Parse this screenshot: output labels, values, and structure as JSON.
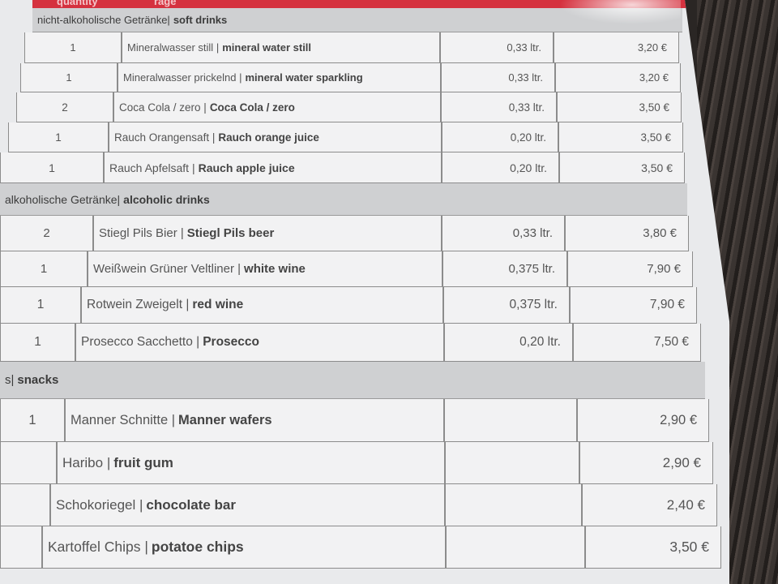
{
  "header": {
    "quantity_label": "quantity",
    "partial_label": "rage"
  },
  "sections": [
    {
      "title_de": "nicht-alkoholische Getränke",
      "title_en": "soft drinks",
      "items": [
        {
          "qty": "1",
          "name_de": "Mineralwasser still",
          "name_en": "mineral water still",
          "volume": "0,33 ltr.",
          "price": "3,20 €"
        },
        {
          "qty": "1",
          "name_de": "Mineralwasser prickelnd",
          "name_en": "mineral water sparkling",
          "volume": "0,33 ltr.",
          "price": "3,20 €"
        },
        {
          "qty": "2",
          "name_de": "Coca Cola / zero",
          "name_en": "Coca Cola / zero",
          "volume": "0,33 ltr.",
          "price": "3,50 €"
        },
        {
          "qty": "1",
          "name_de": "Rauch Orangensaft",
          "name_en": "Rauch orange juice",
          "volume": "0,20 ltr.",
          "price": "3,50 €"
        },
        {
          "qty": "1",
          "name_de": "Rauch Apfelsaft",
          "name_en": "Rauch apple juice",
          "volume": "0,20 ltr.",
          "price": "3,50 €"
        }
      ]
    },
    {
      "title_de": "alkoholische Getränke",
      "title_en": "alcoholic drinks",
      "items": [
        {
          "qty": "2",
          "name_de": "Stiegl Pils Bier",
          "name_en": "Stiegl Pils beer",
          "volume": "0,33 ltr.",
          "price": "3,80 €"
        },
        {
          "qty": "1",
          "name_de": "Weißwein Grüner Veltliner",
          "name_en": "white wine",
          "volume": "0,375 ltr.",
          "price": "7,90 €"
        },
        {
          "qty": "1",
          "name_de": "Rotwein Zweigelt",
          "name_en": "red wine",
          "volume": "0,375 ltr.",
          "price": "7,90 €"
        },
        {
          "qty": "1",
          "name_de": "Prosecco Sacchetto",
          "name_en": "Prosecco",
          "volume": "0,20 ltr.",
          "price": "7,50 €"
        }
      ]
    },
    {
      "title_de": "s",
      "title_en": "snacks",
      "items": [
        {
          "qty": "1",
          "name_de": "Manner Schnitte",
          "name_en": "Manner wafers",
          "volume": "",
          "price": "2,90 €"
        },
        {
          "qty": "",
          "name_de": "Haribo",
          "name_en": "fruit gum",
          "volume": "",
          "price": "2,90 €"
        },
        {
          "qty": "",
          "name_de": "Schokoriegel",
          "name_en": "chocolate bar",
          "volume": "",
          "price": "2,40 €"
        },
        {
          "qty": "",
          "name_de": "Kartoffel Chips",
          "name_en": "potatoe chips",
          "volume": "",
          "price": "3,50 €"
        }
      ]
    }
  ]
}
